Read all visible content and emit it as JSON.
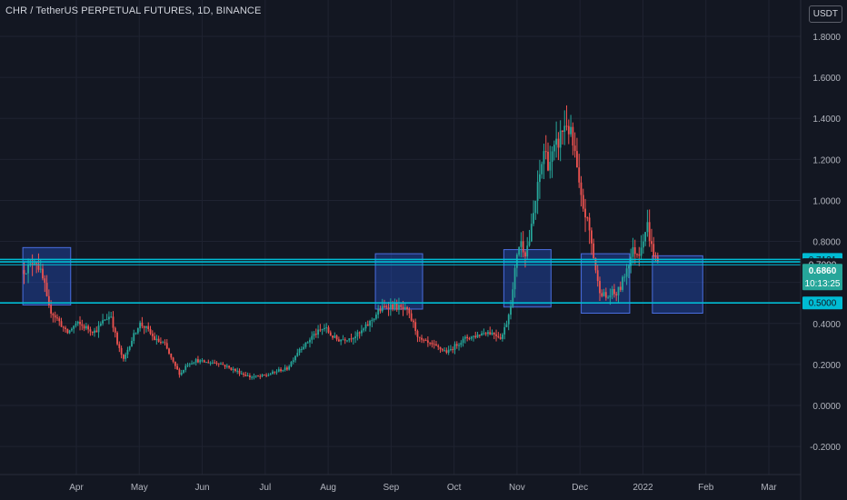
{
  "header": {
    "title": "CHR / TetherUS PERPETUAL FUTURES, 1D, BINANCE",
    "currency": "USDT"
  },
  "colors": {
    "background": "#131722",
    "grid": "#1f2331",
    "up": "#26a69a",
    "down": "#ef5350",
    "level_line": "#00bcd4",
    "box_fill": "rgba(41,98,255,0.30)",
    "box_stroke": "#4a6ee0",
    "axis_text": "#b2b5be"
  },
  "chart_data": {
    "type": "candlestick",
    "title": "CHR / TetherUS PERPETUAL FUTURES, 1D, BINANCE",
    "ylim": [
      -0.3,
      1.9
    ],
    "xlim_months": [
      2.4,
      14.5
    ],
    "y_ticks": [
      "1.8000",
      "1.6000",
      "1.4000",
      "1.2000",
      "1.0000",
      "0.8000",
      "0.6000",
      "0.4000",
      "0.2000",
      "0.0000",
      "-0.2000"
    ],
    "y_tick_values": [
      1.8,
      1.6,
      1.4,
      1.2,
      1.0,
      0.8,
      0.6,
      0.4,
      0.2,
      0.0,
      -0.2
    ],
    "x_ticks": [
      "Apr",
      "May",
      "Jun",
      "Jul",
      "Aug",
      "Sep",
      "Oct",
      "Nov",
      "Dec",
      "2022",
      "Feb",
      "Mar"
    ],
    "x_tick_positions": [
      3.45,
      4.45,
      5.45,
      6.45,
      7.45,
      8.45,
      9.45,
      10.45,
      11.45,
      12.45,
      13.45,
      14.45
    ],
    "horizontal_lines": [
      0.7121,
      0.7,
      0.686,
      0.5
    ],
    "price_labels": [
      {
        "text": "0.7121",
        "value": 0.7121,
        "style": "cyan"
      },
      {
        "text": "0.7000",
        "value": 0.7,
        "style": "plain"
      },
      {
        "text": "0.6860",
        "value": 0.686,
        "style": "current"
      },
      {
        "text": "10:13:25",
        "value": 0.62,
        "style": "timer"
      },
      {
        "text": "0.5000",
        "value": 0.5,
        "style": "cyan"
      }
    ],
    "boxes": [
      {
        "x0": 2.6,
        "x1": 3.36,
        "y0": 0.49,
        "y1": 0.77
      },
      {
        "x0": 8.2,
        "x1": 8.95,
        "y0": 0.47,
        "y1": 0.74
      },
      {
        "x0": 10.24,
        "x1": 10.99,
        "y0": 0.48,
        "y1": 0.76
      },
      {
        "x0": 11.47,
        "x1": 12.24,
        "y0": 0.45,
        "y1": 0.74
      },
      {
        "x0": 12.6,
        "x1": 13.4,
        "y0": 0.45,
        "y1": 0.73
      }
    ],
    "path": [
      [
        2.62,
        0.66
      ],
      [
        2.72,
        0.68
      ],
      [
        2.8,
        0.72
      ],
      [
        2.88,
        0.65
      ],
      [
        2.95,
        0.58
      ],
      [
        3.0,
        0.48
      ],
      [
        3.1,
        0.44
      ],
      [
        3.2,
        0.4
      ],
      [
        3.3,
        0.35
      ],
      [
        3.45,
        0.4
      ],
      [
        3.6,
        0.38
      ],
      [
        3.75,
        0.36
      ],
      [
        3.9,
        0.42
      ],
      [
        4.0,
        0.44
      ],
      [
        4.1,
        0.3
      ],
      [
        4.2,
        0.22
      ],
      [
        4.3,
        0.3
      ],
      [
        4.45,
        0.4
      ],
      [
        4.55,
        0.38
      ],
      [
        4.7,
        0.32
      ],
      [
        4.85,
        0.3
      ],
      [
        5.0,
        0.2
      ],
      [
        5.1,
        0.15
      ],
      [
        5.2,
        0.2
      ],
      [
        5.35,
        0.22
      ],
      [
        5.5,
        0.21
      ],
      [
        5.7,
        0.21
      ],
      [
        5.9,
        0.18
      ],
      [
        6.05,
        0.16
      ],
      [
        6.2,
        0.14
      ],
      [
        6.35,
        0.14
      ],
      [
        6.5,
        0.15
      ],
      [
        6.65,
        0.17
      ],
      [
        6.8,
        0.18
      ],
      [
        6.9,
        0.23
      ],
      [
        7.0,
        0.28
      ],
      [
        7.1,
        0.3
      ],
      [
        7.2,
        0.34
      ],
      [
        7.3,
        0.36
      ],
      [
        7.4,
        0.38
      ],
      [
        7.5,
        0.34
      ],
      [
        7.6,
        0.32
      ],
      [
        7.8,
        0.33
      ],
      [
        7.95,
        0.35
      ],
      [
        8.1,
        0.4
      ],
      [
        8.25,
        0.46
      ],
      [
        8.4,
        0.49
      ],
      [
        8.55,
        0.48
      ],
      [
        8.7,
        0.46
      ],
      [
        8.8,
        0.4
      ],
      [
        8.9,
        0.32
      ],
      [
        9.05,
        0.3
      ],
      [
        9.2,
        0.28
      ],
      [
        9.35,
        0.26
      ],
      [
        9.5,
        0.3
      ],
      [
        9.65,
        0.33
      ],
      [
        9.8,
        0.34
      ],
      [
        9.95,
        0.36
      ],
      [
        10.1,
        0.35
      ],
      [
        10.2,
        0.33
      ],
      [
        10.3,
        0.42
      ],
      [
        10.38,
        0.55
      ],
      [
        10.45,
        0.75
      ],
      [
        10.5,
        0.8
      ],
      [
        10.58,
        0.75
      ],
      [
        10.66,
        0.82
      ],
      [
        10.72,
        0.95
      ],
      [
        10.8,
        1.1
      ],
      [
        10.88,
        1.25
      ],
      [
        10.95,
        1.18
      ],
      [
        11.02,
        1.22
      ],
      [
        11.1,
        1.28
      ],
      [
        11.18,
        1.35
      ],
      [
        11.24,
        1.38
      ],
      [
        11.3,
        1.32
      ],
      [
        11.38,
        1.2
      ],
      [
        11.45,
        1.02
      ],
      [
        11.52,
        0.95
      ],
      [
        11.6,
        0.85
      ],
      [
        11.68,
        0.7
      ],
      [
        11.74,
        0.58
      ],
      [
        11.8,
        0.55
      ],
      [
        11.88,
        0.52
      ],
      [
        11.95,
        0.55
      ],
      [
        12.02,
        0.54
      ],
      [
        12.1,
        0.58
      ],
      [
        12.2,
        0.68
      ],
      [
        12.3,
        0.76
      ],
      [
        12.38,
        0.74
      ],
      [
        12.45,
        0.82
      ],
      [
        12.52,
        0.88
      ],
      [
        12.58,
        0.78
      ],
      [
        12.64,
        0.72
      ],
      [
        12.7,
        0.69
      ]
    ]
  }
}
